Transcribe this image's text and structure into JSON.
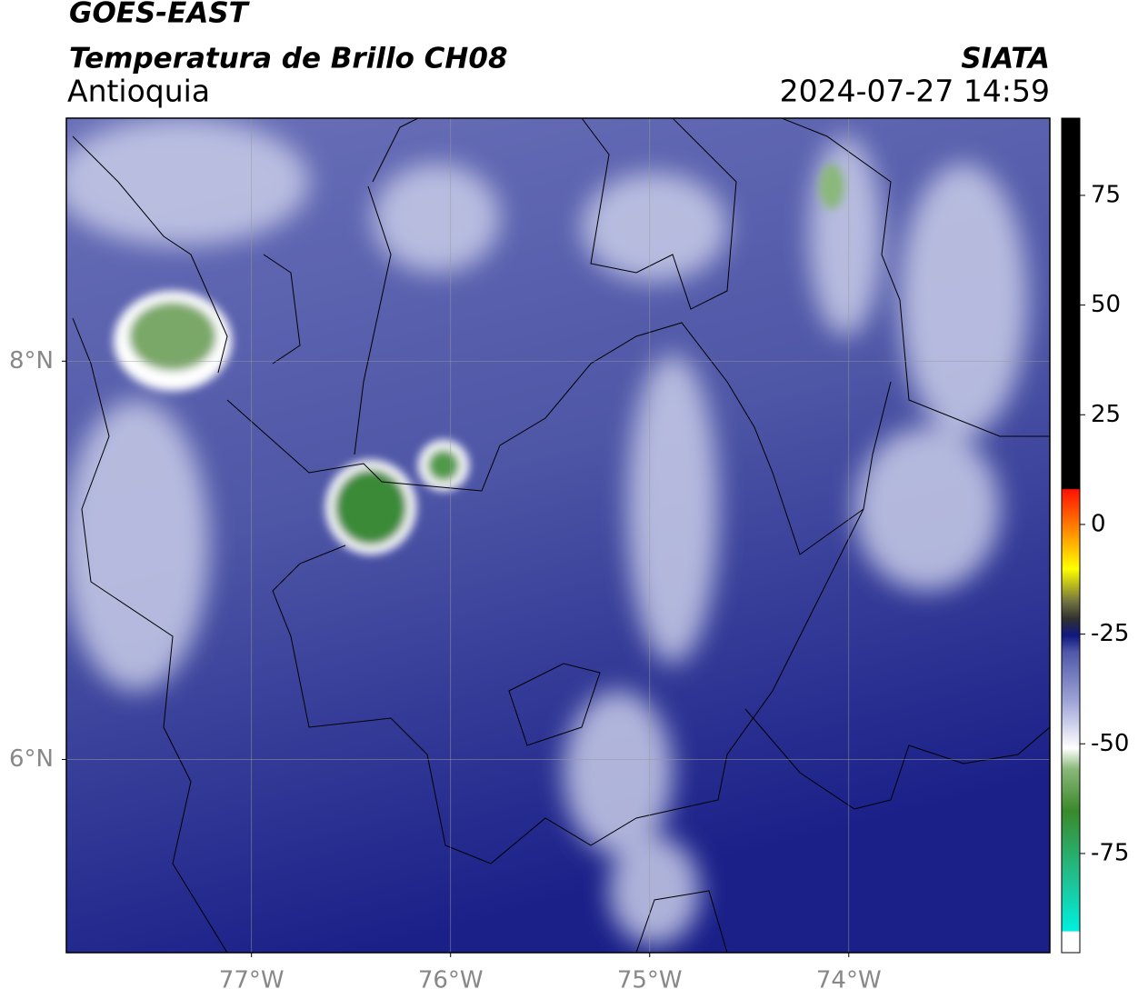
{
  "header": {
    "title": "GOES-EAST",
    "subtitle": "Temperatura de Brillo CH08",
    "region": "Antioquia",
    "source": "SIATA",
    "datetime": "2024-07-27 14:59"
  },
  "map": {
    "xlim": [
      -77.93,
      -72.99
    ],
    "ylim": [
      5.03,
      9.22
    ],
    "xticks": [
      {
        "value": -77,
        "label": "77°W"
      },
      {
        "value": -76,
        "label": "76°W"
      },
      {
        "value": -75,
        "label": "75°W"
      },
      {
        "value": -74,
        "label": "74°W"
      }
    ],
    "yticks": [
      {
        "value": 6,
        "label": "6°N"
      },
      {
        "value": 8,
        "label": "8°N"
      }
    ],
    "grid": true
  },
  "colorbar": {
    "lim": [
      -97.6,
      92.6
    ],
    "ticks": [
      -75,
      -50,
      -25,
      0,
      25,
      50,
      75
    ]
  }
}
